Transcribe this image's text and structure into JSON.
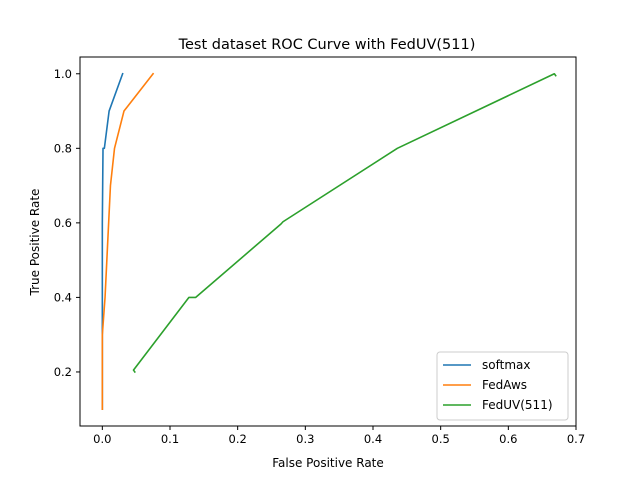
{
  "chart_data": {
    "type": "line",
    "title": "Test dataset ROC Curve with FedUV(511)",
    "xlabel": "False Positive Rate",
    "ylabel": "True Positive Rate",
    "xlim": [
      -0.033,
      0.7
    ],
    "ylim": [
      0.055,
      1.045
    ],
    "x_ticks": [
      0.0,
      0.1,
      0.2,
      0.3,
      0.4,
      0.5,
      0.6,
      0.7
    ],
    "x_tick_labels": [
      "0.0",
      "0.1",
      "0.2",
      "0.3",
      "0.4",
      "0.5",
      "0.6",
      "0.7"
    ],
    "y_ticks": [
      0.2,
      0.4,
      0.6,
      0.8,
      1.0
    ],
    "y_tick_labels": [
      "0.2",
      "0.4",
      "0.6",
      "0.8",
      "1.0"
    ],
    "grid": false,
    "legend_position": "bottom-right",
    "series": [
      {
        "name": "softmax",
        "color": "#1f77b4",
        "x": [
          0.0,
          0.0,
          0.0,
          0.001,
          0.003,
          0.01,
          0.03
        ],
        "y": [
          0.1,
          0.3,
          0.6,
          0.8,
          0.8,
          0.9,
          1.0
        ]
      },
      {
        "name": "FedAws",
        "color": "#ff7f0e",
        "x": [
          0.0,
          0.0,
          0.004,
          0.012,
          0.018,
          0.032,
          0.075
        ],
        "y": [
          0.1,
          0.3,
          0.4,
          0.7,
          0.8,
          0.9,
          1.0
        ]
      },
      {
        "name": "FedUV(511)",
        "color": "#2ca02c",
        "x": [
          0.048,
          0.046,
          0.128,
          0.138,
          0.264,
          0.267,
          0.436,
          0.668,
          0.67
        ],
        "y": [
          0.2,
          0.205,
          0.4,
          0.4,
          0.597,
          0.603,
          0.8,
          1.0,
          0.995
        ]
      }
    ]
  }
}
